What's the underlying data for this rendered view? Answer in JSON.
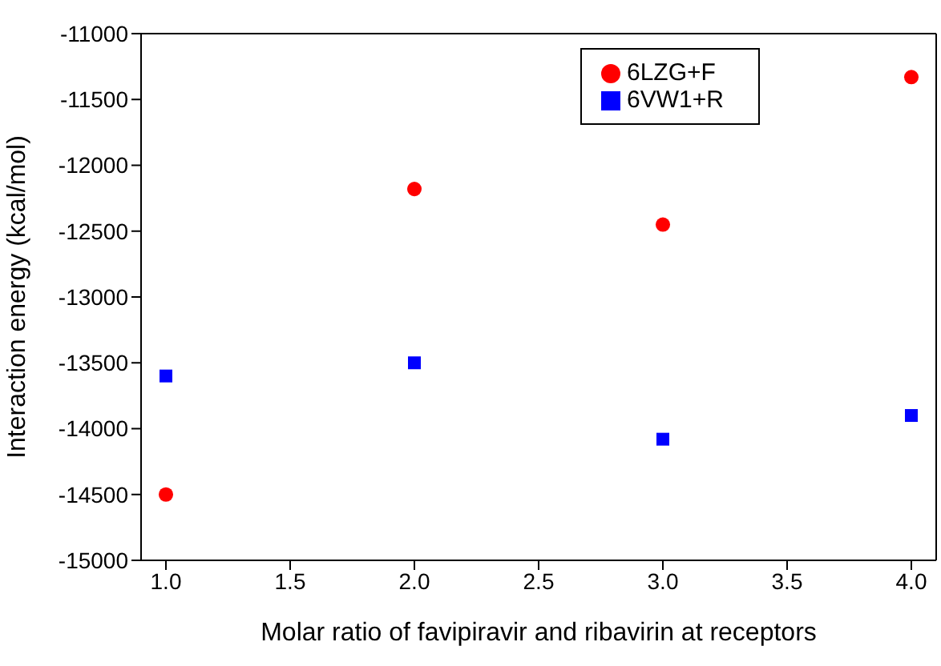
{
  "chart_data": {
    "type": "scatter",
    "xlabel": "Molar ratio of favipiravir and ribavirin at receptors",
    "ylabel": "Interaction energy (kcal/mol)",
    "x": [
      1,
      2,
      3,
      4
    ],
    "series": [
      {
        "name": "6LZG+F",
        "color": "#ff0000",
        "marker": "circle",
        "values": [
          -14500,
          -12180,
          -12450,
          -11330
        ]
      },
      {
        "name": "6VW1+R",
        "color": "#0000ff",
        "marker": "square",
        "values": [
          -13600,
          -13500,
          -14080,
          -13900
        ]
      }
    ],
    "xlim": [
      0.9,
      4.1
    ],
    "xticks": [
      {
        "value": 1,
        "label": "1.0"
      },
      {
        "value": 1.5,
        "label": "1.5"
      },
      {
        "value": 2,
        "label": "2.0"
      },
      {
        "value": 2.5,
        "label": "2.5"
      },
      {
        "value": 3,
        "label": "3.0"
      },
      {
        "value": 3.5,
        "label": "3.5"
      },
      {
        "value": 4,
        "label": "4.0"
      }
    ],
    "ylim": [
      -15000,
      -11000
    ],
    "yticks": [
      -15000,
      -14500,
      -14000,
      -13500,
      -13000,
      -12500,
      -12000,
      -11500,
      -11000
    ],
    "legend": "top right"
  }
}
